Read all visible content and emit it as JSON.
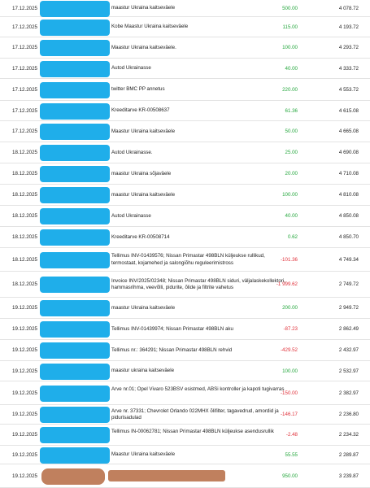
{
  "colors": {
    "positive": "#22a63b",
    "negative": "#e0303a",
    "redaction_primary": "#1faeea",
    "redaction_secondary": "#c0805e"
  },
  "transactions": [
    {
      "date": "17.12.2025",
      "description": "maastur Ukraina kaitseväele",
      "amount": "500.00",
      "balance": "4 078.72",
      "sign": "pos"
    },
    {
      "date": "17.12.2025",
      "description": "Kobe Maastur Ukraina kaitseväele",
      "amount": "115.00",
      "balance": "4 193.72",
      "sign": "pos"
    },
    {
      "date": "17.12.2025",
      "description": "Maastur Ukraina kaitseväele.",
      "amount": "100.00",
      "balance": "4 293.72",
      "sign": "pos"
    },
    {
      "date": "17.12.2025",
      "description": "Autod Ukrainasse",
      "amount": "40.00",
      "balance": "4 333.72",
      "sign": "pos"
    },
    {
      "date": "17.12.2025",
      "description": "twitter BMC PP annetus",
      "amount": "220.00",
      "balance": "4 553.72",
      "sign": "pos"
    },
    {
      "date": "17.12.2025",
      "description": "Kreeditarve KR-00508637",
      "amount": "61.36",
      "balance": "4 615.08",
      "sign": "pos"
    },
    {
      "date": "17.12.2025",
      "description": "Maastur Ukraina kaitseväele",
      "amount": "50.00",
      "balance": "4 665.08",
      "sign": "pos"
    },
    {
      "date": "18.12.2025",
      "description": "Autod Ukrainasse.",
      "amount": "25.00",
      "balance": "4 690.08",
      "sign": "pos"
    },
    {
      "date": "18.12.2025",
      "description": "maastur Ukraina sõjaväele",
      "amount": "20.00",
      "balance": "4 710.08",
      "sign": "pos"
    },
    {
      "date": "18.12.2025",
      "description": "maastur Ukraina kaitseväele",
      "amount": "100.00",
      "balance": "4 810.08",
      "sign": "pos"
    },
    {
      "date": "18.12.2025",
      "description": "Autod Ukrainasse",
      "amount": "40.00",
      "balance": "4 850.08",
      "sign": "pos"
    },
    {
      "date": "18.12.2025",
      "description": "Kreeditarve KR-00508714",
      "amount": "0.62",
      "balance": "4 850.70",
      "sign": "pos"
    },
    {
      "date": "18.12.2025",
      "description": "Tellimus INV-01439576; Nissan Primastar 498BLN küljeukse rullikud, termostaat, kojamehed ja salongiõhu reguleerimistross",
      "amount": "-101.36",
      "balance": "4 749.34",
      "sign": "neg"
    },
    {
      "date": "18.12.2025",
      "description": "Invoice INV/2025/02348; Nissan Primastar 498BLN siduri, väljalaskekollektori, hammasrihma, veevõlli, pidurite, õlide ja filtrite vahetus",
      "amount": "-1 999.62",
      "balance": "2 749.72",
      "sign": "neg"
    },
    {
      "date": "19.12.2025",
      "description": "maastur Ukraina kaitseväele",
      "amount": "200.00",
      "balance": "2 949.72",
      "sign": "pos"
    },
    {
      "date": "19.12.2025",
      "description": "Tellimus INV-01439974; Nissan Primastar 498BLN aku",
      "amount": "-87.23",
      "balance": "2 862.49",
      "sign": "neg"
    },
    {
      "date": "19.12.2025",
      "description": "Tellimus nr.: 364291; Nissan Primastar 498BLN rehvid",
      "amount": "-429.52",
      "balance": "2 432.97",
      "sign": "neg"
    },
    {
      "date": "19.12.2025",
      "description": "maastur ukraina kaitseväele",
      "amount": "100.00",
      "balance": "2 532.97",
      "sign": "pos"
    },
    {
      "date": "19.12.2025",
      "description": "Arve nr.01; Opel Vivaro 523BSV esistmed, ABSi kontroller ja kapoti tugivarras",
      "amount": "-150.00",
      "balance": "2 382.97",
      "sign": "neg"
    },
    {
      "date": "19.12.2025",
      "description": "Arve nr. 37331; Chevrolet Orlando 022MHX õlifilter, tagavedrud, amordid ja pidurisadulad",
      "amount": "-146.17",
      "balance": "2 236.80",
      "sign": "neg"
    },
    {
      "date": "19.12.2025",
      "description": "Tellimus IN-00062781; Nissan Primastar 498BLN küljeukse asendusrullik",
      "amount": "-2.48",
      "balance": "2 234.32",
      "sign": "neg"
    },
    {
      "date": "19.12.2025",
      "description": "Maastur Ukraina kaitseväele",
      "amount": "55.55",
      "balance": "2 289.87",
      "sign": "pos"
    },
    {
      "date": "19.12.2025",
      "description": "",
      "amount": "950.00",
      "balance": "3 239.87",
      "sign": "pos"
    }
  ]
}
